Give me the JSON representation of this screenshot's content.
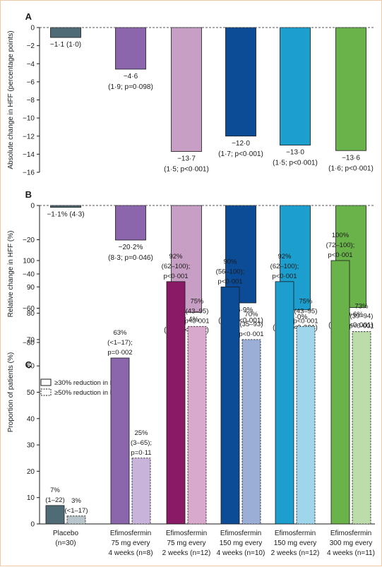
{
  "chart_data": [
    {
      "panel": "A",
      "type": "bar",
      "ylabel": "Absolute change in HFF (percentage points)",
      "ylim": [
        -16,
        0
      ],
      "yticks": [
        0,
        -2,
        -4,
        -6,
        -8,
        -10,
        -12,
        -14,
        -16
      ],
      "reference_line": 0,
      "categories": [
        "Placebo (n=30)",
        "Efimosfermin 75 mg every 4 weeks (n=8)",
        "Efimosfermin 75 mg every 2 weeks (n=12)",
        "Efimosfermin 150 mg every 4 weeks (n=10)",
        "Efimosfermin 150 mg every 2 weeks (n=12)",
        "Efimosfermin 300 mg every 4 weeks (n=11)"
      ],
      "values": [
        -1.1,
        -4.6,
        -13.7,
        -12.0,
        -13.0,
        -13.6
      ],
      "colors": [
        "#4f6b75",
        "#8b66ad",
        "#c89fc4",
        "#0c4c96",
        "#1c9fce",
        "#6ab24a"
      ],
      "labels": [
        [
          "−1·1 (1·0)"
        ],
        [
          "−4·6",
          "(1·9; p=0·098)"
        ],
        [
          "−13·7",
          "(1·5; p<0·001)"
        ],
        [
          "−12·0",
          "(1·7; p<0·001)"
        ],
        [
          "−13·0",
          "(1·5; p<0·001)"
        ],
        [
          "−13·6",
          "(1·6; p<0·001)"
        ]
      ]
    },
    {
      "panel": "B",
      "type": "bar",
      "ylabel": "Relative change in HFF (%)",
      "ylim": [
        -80,
        0
      ],
      "yticks": [
        0,
        -20,
        -40,
        -60,
        -80
      ],
      "reference_line": 0,
      "categories": [
        "Placebo (n=30)",
        "Efimosfermin 75 mg every 4 weeks (n=8)",
        "Efimosfermin 75 mg every 2 weeks (n=12)",
        "Efimosfermin 150 mg every 4 weeks (n=10)",
        "Efimosfermin 150 mg every 2 weeks (n=12)",
        "Efimosfermin 300 mg every 4 weeks (n=11)"
      ],
      "values": [
        -1.1,
        -20.2,
        -62.4,
        -56.9,
        -61.0,
        -59.6
      ],
      "colors": [
        "#4f6b75",
        "#8b66ad",
        "#c89fc4",
        "#0c4c96",
        "#1c9fce",
        "#6ab24a"
      ],
      "labels": [
        [
          "−1·1% (4·3)"
        ],
        [
          "−20·2%",
          "(8·3; p=0·046)"
        ],
        [
          "−62·4%",
          "(6·7; p<0·001)"
        ],
        [
          "−56·9%",
          "(7·4; p<0·001)"
        ],
        [
          "−61·0%",
          "(6·7; p<0·001)"
        ],
        [
          "−59·6%",
          "(7·1; p<0·001)"
        ]
      ]
    },
    {
      "panel": "C",
      "type": "bar",
      "ylabel": "Proportion of patients (%)",
      "ylim": [
        0,
        100
      ],
      "yticks": [
        0,
        10,
        20,
        30,
        40,
        50,
        60,
        70,
        80,
        90,
        100
      ],
      "xtick_labels": [
        [
          "Placebo",
          "(n=30)"
        ],
        [
          "Efimosfermin",
          "75 mg every",
          "4 weeks (n=8)"
        ],
        [
          "Efimosfermin",
          "75 mg every",
          "2 weeks (n=12)"
        ],
        [
          "Efimosfermin",
          "150 mg every",
          "4 weeks (n=10)"
        ],
        [
          "Efimosfermin",
          "150 mg every",
          "2 weeks (n=12)"
        ],
        [
          "Efimosfermin",
          "300 mg every",
          "4 weeks (n=11)"
        ]
      ],
      "legend": {
        "position": "top-left",
        "entries": [
          "≥30% reduction in HFF",
          "≥50% reduction in HFF"
        ]
      },
      "series": [
        {
          "name": "≥30% reduction in HFF",
          "values": [
            7,
            63,
            92,
            90,
            92,
            100
          ],
          "colors": [
            "#4f6b75",
            "#8b66ad",
            "#8b1a66",
            "#0c4c96",
            "#1c9fce",
            "#6ab24a"
          ],
          "labels": [
            [
              "7%",
              "(1–22)"
            ],
            [
              "63%",
              "(<1–17);",
              "p=0·002"
            ],
            [
              "92%",
              "(62–100);",
              "p<0·001"
            ],
            [
              "90%",
              "(56–100);",
              "p<0·001"
            ],
            [
              "92%",
              "(62–100);",
              "p<0·001"
            ],
            [
              "100%",
              "(72–100);",
              "p<0·001"
            ]
          ]
        },
        {
          "name": "≥50% reduction in HFF",
          "values": [
            3,
            25,
            75,
            70,
            75,
            73
          ],
          "colors": [
            "#b8c6cb",
            "#c8b3da",
            "#d8a9cc",
            "#9aaed6",
            "#9fd6eb",
            "#bcdca9"
          ],
          "labels": [
            [
              "3%",
              "(<1–17)"
            ],
            [
              "25%",
              "(3–65);",
              "p=0·11"
            ],
            [
              "75%",
              "(43–95)",
              "p<0·001"
            ],
            [
              "70%",
              "(35–93)",
              "p<0·001"
            ],
            [
              "75%",
              "(43–95)",
              "p<0·001"
            ],
            [
              "73%",
              "(39–94)",
              "p<0·001"
            ]
          ]
        }
      ]
    }
  ],
  "panel_letters": [
    "A",
    "B",
    "C"
  ]
}
